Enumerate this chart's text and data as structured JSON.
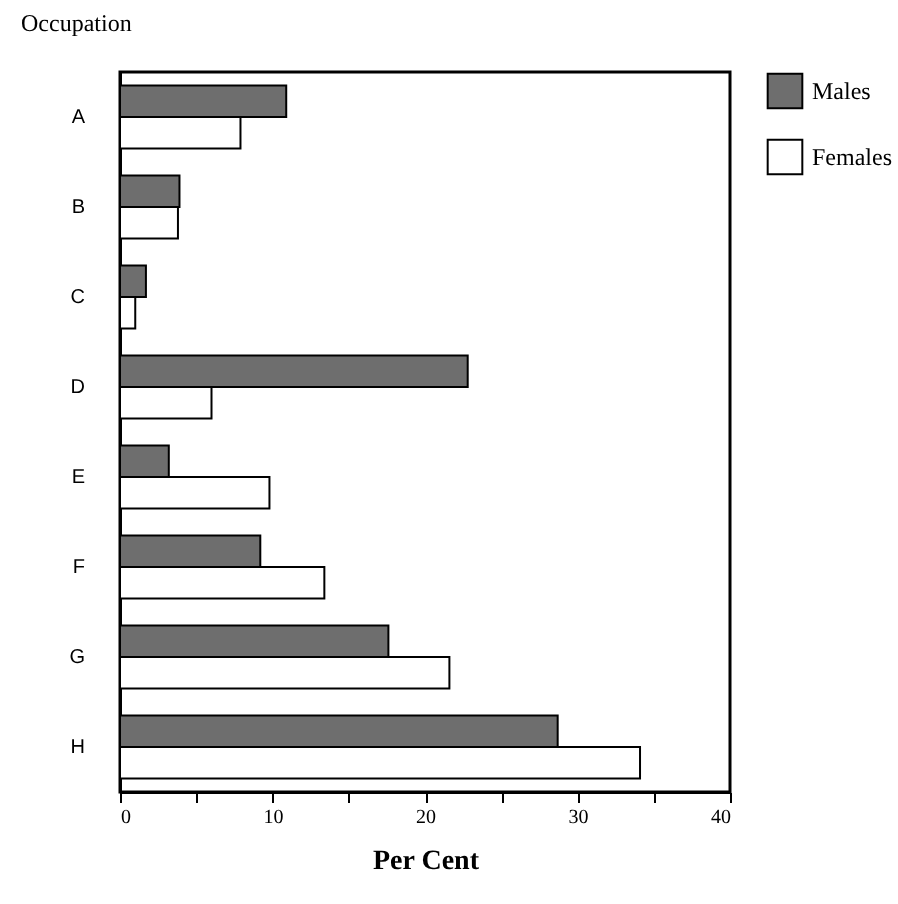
{
  "chart_data": {
    "type": "bar",
    "orientation": "horizontal",
    "xlabel": "Per Cent",
    "ylabel": "Occupation",
    "categories": [
      "A",
      "B",
      "C",
      "D",
      "E",
      "F",
      "G",
      "H"
    ],
    "series": [
      {
        "name": "Males",
        "color": "#6e6e6e",
        "values": [
          10.9,
          3.9,
          1.7,
          22.8,
          3.2,
          9.2,
          17.6,
          28.7
        ]
      },
      {
        "name": "Females",
        "color": "#ffffff",
        "values": [
          7.9,
          3.8,
          1.0,
          6.0,
          9.8,
          13.4,
          21.6,
          34.1
        ]
      }
    ],
    "xlim": [
      0,
      40
    ],
    "xticks": [
      0,
      {
        "value": 5,
        "label": null
      },
      10,
      {
        "value": 15,
        "label": null
      },
      20,
      {
        "value": 25,
        "label": null
      },
      30,
      {
        "value": 35,
        "label": null
      },
      40
    ],
    "grid": false,
    "legend": "top right"
  }
}
